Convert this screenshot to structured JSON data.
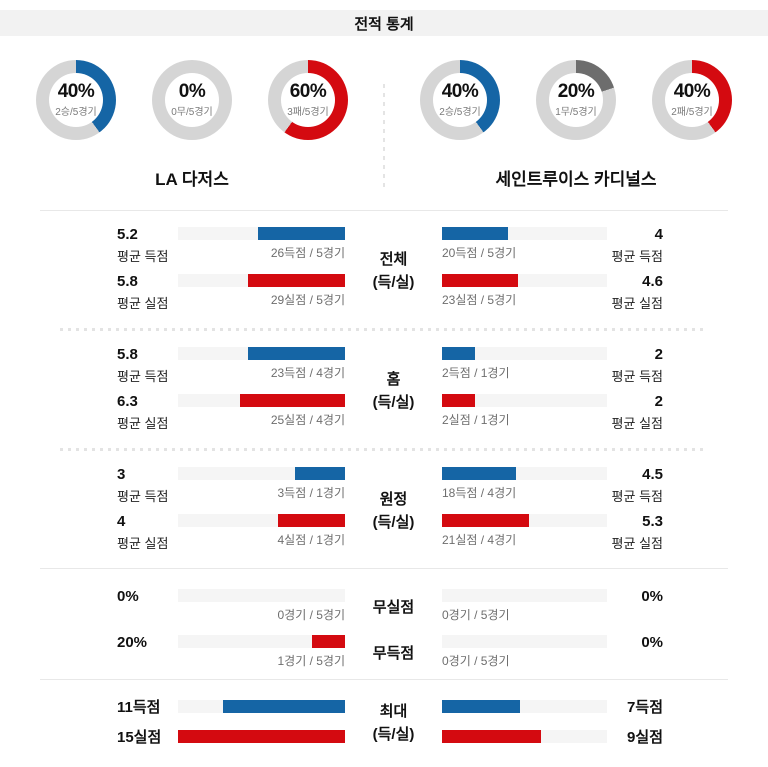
{
  "header": {
    "title": "전적 통계"
  },
  "colors": {
    "blue": "#1565a5",
    "red": "#d40a10",
    "darkgray": "#6d6d6d",
    "donut_track": "#d5d5d5",
    "bar_track": "#f5f5f5",
    "sub_text": "#6e6e6e",
    "separator": "#e8e8e8"
  },
  "teams": {
    "home": "LA 다저스",
    "away": "세인트루이스 카디널스"
  },
  "donuts": {
    "home": [
      {
        "pct": 40,
        "pct_label": "40%",
        "sub": "2승/5경기",
        "color": "blue"
      },
      {
        "pct": 0,
        "pct_label": "0%",
        "sub": "0무/5경기",
        "color": "donut_track"
      },
      {
        "pct": 60,
        "pct_label": "60%",
        "sub": "3패/5경기",
        "color": "red"
      }
    ],
    "away": [
      {
        "pct": 40,
        "pct_label": "40%",
        "sub": "2승/5경기",
        "color": "blue"
      },
      {
        "pct": 20,
        "pct_label": "20%",
        "sub": "1무/5경기",
        "color": "darkgray"
      },
      {
        "pct": 40,
        "pct_label": "40%",
        "sub": "2패/5경기",
        "color": "red"
      }
    ]
  },
  "sections": [
    {
      "center_line1": "전체",
      "center_line2": "(득/실)",
      "rows": [
        {
          "home": {
            "value": "5.2",
            "label": "평균 득점",
            "sub": "26득점 / 5경기",
            "fill": 52
          },
          "away": {
            "value": "4",
            "label": "평균 득점",
            "sub": "20득점 / 5경기",
            "fill": 40
          }
        },
        {
          "home": {
            "value": "5.8",
            "label": "평균 실점",
            "sub": "29실점 / 5경기",
            "fill": 58
          },
          "away": {
            "value": "4.6",
            "label": "평균 실점",
            "sub": "23실점 / 5경기",
            "fill": 46
          }
        }
      ]
    },
    {
      "center_line1": "홈",
      "center_line2": "(득/실)",
      "rows": [
        {
          "home": {
            "value": "5.8",
            "label": "평균 득점",
            "sub": "23득점 / 4경기",
            "fill": 58
          },
          "away": {
            "value": "2",
            "label": "평균 득점",
            "sub": "2득점 / 1경기",
            "fill": 20
          }
        },
        {
          "home": {
            "value": "6.3",
            "label": "평균 실점",
            "sub": "25실점 / 4경기",
            "fill": 63
          },
          "away": {
            "value": "2",
            "label": "평균 실점",
            "sub": "2실점 / 1경기",
            "fill": 20
          }
        }
      ]
    },
    {
      "center_line1": "원정",
      "center_line2": "(득/실)",
      "rows": [
        {
          "home": {
            "value": "3",
            "label": "평균 득점",
            "sub": "3득점 / 1경기",
            "fill": 30
          },
          "away": {
            "value": "4.5",
            "label": "평균 득점",
            "sub": "18득점 / 4경기",
            "fill": 45
          }
        },
        {
          "home": {
            "value": "4",
            "label": "평균 실점",
            "sub": "4실점 / 1경기",
            "fill": 40
          },
          "away": {
            "value": "5.3",
            "label": "평균 실점",
            "sub": "21실점 / 4경기",
            "fill": 53
          }
        }
      ]
    },
    {
      "rows": [
        {
          "center": "무실점",
          "home": {
            "value": "0%",
            "sub": "0경기 / 5경기",
            "fill": 0
          },
          "away": {
            "value": "0%",
            "sub": "0경기 / 5경기",
            "fill": 0
          }
        },
        {
          "center": "무득점",
          "home": {
            "value": "20%",
            "sub": "1경기 / 5경기",
            "fill": 20
          },
          "away": {
            "value": "0%",
            "sub": "0경기 / 5경기",
            "fill": 0
          }
        }
      ]
    },
    {
      "center_line1": "최대",
      "center_line2": "(득/실)",
      "rows": [
        {
          "home": {
            "value": "11득점",
            "fill": 73
          },
          "away": {
            "value": "7득점",
            "fill": 47
          }
        },
        {
          "home": {
            "value": "15실점",
            "fill": 100
          },
          "away": {
            "value": "9실점",
            "fill": 60
          }
        }
      ]
    }
  ],
  "chart_data": [
    {
      "type": "pie",
      "title": "LA 다저스 전적 (승/무/패)",
      "slices": [
        {
          "label": "승",
          "pct": 40,
          "detail": "2승/5경기"
        },
        {
          "label": "무",
          "pct": 0,
          "detail": "0무/5경기"
        },
        {
          "label": "패",
          "pct": 60,
          "detail": "3패/5경기"
        }
      ]
    },
    {
      "type": "pie",
      "title": "세인트루이스 카디널스 전적 (승/무/패)",
      "slices": [
        {
          "label": "승",
          "pct": 40,
          "detail": "2승/5경기"
        },
        {
          "label": "무",
          "pct": 20,
          "detail": "1무/5경기"
        },
        {
          "label": "패",
          "pct": 40,
          "detail": "2패/5경기"
        }
      ]
    },
    {
      "type": "bar",
      "title": "전체 (득/실)",
      "categories": [
        "평균 득점",
        "평균 실점"
      ],
      "series": [
        {
          "name": "LA 다저스",
          "values": [
            5.2,
            5.8
          ],
          "detail": [
            "26득점 / 5경기",
            "29실점 / 5경기"
          ]
        },
        {
          "name": "세인트루이스 카디널스",
          "values": [
            4,
            4.6
          ],
          "detail": [
            "20득점 / 5경기",
            "23실점 / 5경기"
          ]
        }
      ]
    },
    {
      "type": "bar",
      "title": "홈 (득/실)",
      "categories": [
        "평균 득점",
        "평균 실점"
      ],
      "series": [
        {
          "name": "LA 다저스",
          "values": [
            5.8,
            6.3
          ],
          "detail": [
            "23득점 / 4경기",
            "25실점 / 4경기"
          ]
        },
        {
          "name": "세인트루이스 카디널스",
          "values": [
            2,
            2
          ],
          "detail": [
            "2득점 / 1경기",
            "2실점 / 1경기"
          ]
        }
      ]
    },
    {
      "type": "bar",
      "title": "원정 (득/실)",
      "categories": [
        "평균 득점",
        "평균 실점"
      ],
      "series": [
        {
          "name": "LA 다저스",
          "values": [
            3,
            4
          ],
          "detail": [
            "3득점 / 1경기",
            "4실점 / 1경기"
          ]
        },
        {
          "name": "세인트루이스 카디널스",
          "values": [
            4.5,
            5.3
          ],
          "detail": [
            "18득점 / 4경기",
            "21실점 / 4경기"
          ]
        }
      ]
    },
    {
      "type": "bar",
      "title": "무실점 / 무득점",
      "unit": "%",
      "categories": [
        "무실점",
        "무득점"
      ],
      "series": [
        {
          "name": "LA 다저스",
          "values": [
            0,
            20
          ],
          "detail": [
            "0경기 / 5경기",
            "1경기 / 5경기"
          ]
        },
        {
          "name": "세인트루이스 카디널스",
          "values": [
            0,
            0
          ],
          "detail": [
            "0경기 / 5경기",
            "0경기 / 5경기"
          ]
        }
      ]
    },
    {
      "type": "bar",
      "title": "최대 (득/실)",
      "categories": [
        "최대 득점",
        "최대 실점"
      ],
      "series": [
        {
          "name": "LA 다저스",
          "values": [
            11,
            15
          ]
        },
        {
          "name": "세인트루이스 카디널스",
          "values": [
            7,
            9
          ]
        }
      ]
    }
  ]
}
